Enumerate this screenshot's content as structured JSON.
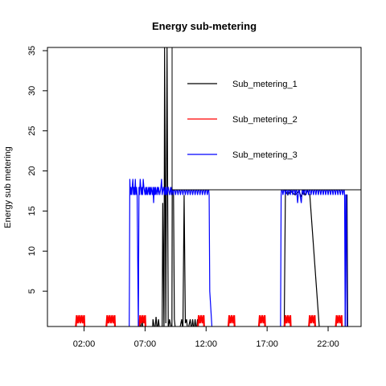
{
  "chart_data": {
    "type": "line",
    "title": "Energy sub-metering",
    "xlabel": "",
    "ylabel": "Energy sub metering",
    "xlim": [
      -1.0,
      24.7
    ],
    "ylim": [
      0.6,
      35.4
    ],
    "x_ticks": [
      {
        "value": 2,
        "label": "02:00"
      },
      {
        "value": 7,
        "label": "07:00"
      },
      {
        "value": 12,
        "label": "12:00"
      },
      {
        "value": 17,
        "label": "17:00"
      },
      {
        "value": 22,
        "label": "22:00"
      }
    ],
    "y_ticks": [
      5,
      10,
      15,
      20,
      25,
      30,
      35
    ],
    "legend": {
      "placement": "top-right",
      "entries": [
        {
          "name": "Sub_metering_1",
          "color": "#000000"
        },
        {
          "name": "Sub_metering_2",
          "color": "#ff0000"
        },
        {
          "name": "Sub_metering_3",
          "color": "#0000ff"
        }
      ]
    },
    "series": [
      {
        "name": "Sub_metering_1",
        "color": "#000000",
        "x": [
          -0.5,
          6.5,
          6.55,
          6.65,
          6.75,
          6.85,
          7.0,
          7.6,
          7.65,
          7.8,
          7.9,
          8.0,
          8.1,
          8.2,
          8.4,
          8.45,
          8.55,
          8.6,
          8.7,
          8.8,
          8.9,
          9.0,
          9.2,
          9.25,
          9.4,
          9.5,
          9.6,
          9.8,
          10.0,
          10.1,
          10.2,
          10.3,
          10.4,
          10.5,
          10.7,
          10.8,
          10.9,
          11.0,
          11.1,
          11.2,
          11.3,
          11.4,
          11.5,
          11.6,
          11.7,
          11.8,
          12.0,
          12.5,
          14.5,
          15.0,
          16.3,
          17.5,
          18.4,
          18.5,
          18.7,
          18.9,
          19.3,
          19.6,
          19.8,
          20.0,
          20.1,
          20.3,
          20.5,
          21.3,
          23.4,
          23.45,
          23.55,
          23.6,
          24.7
        ],
        "y": [
          0,
          0,
          1.5,
          0,
          1.5,
          0,
          0,
          0,
          1.5,
          0,
          1.8,
          0,
          1.5,
          0,
          0,
          16,
          0,
          35.4,
          1,
          35.4,
          0,
          1.5,
          0,
          35.4,
          1.5,
          0,
          0,
          0,
          1.5,
          0,
          17,
          1,
          1.5,
          0,
          1.5,
          0,
          1.5,
          0,
          1.5,
          0,
          1.5,
          0,
          0,
          0,
          0,
          0,
          0,
          0,
          0,
          0,
          0,
          0,
          0,
          17.5,
          17,
          17.5,
          17,
          17.5,
          16.8,
          17.5,
          17,
          17.5,
          17,
          0,
          0,
          17,
          17,
          0,
          0
        ]
      },
      {
        "name": "Sub_metering_2",
        "color": "#ff0000",
        "x": [
          1.3,
          1.35,
          1.4,
          1.5,
          1.6,
          1.7,
          1.8,
          1.9,
          2.0,
          2.05,
          3.8,
          3.85,
          3.9,
          4.0,
          4.1,
          4.2,
          4.3,
          4.4,
          4.5,
          4.55,
          6.5,
          6.55,
          6.6,
          6.7,
          6.8,
          6.9,
          7.0,
          7.05,
          11.3,
          11.35,
          11.4,
          11.5,
          11.6,
          11.7,
          11.8,
          11.85,
          13.8,
          13.85,
          13.9,
          14.0,
          14.1,
          14.2,
          14.3,
          14.35,
          16.3,
          16.35,
          16.4,
          16.5,
          16.6,
          16.7,
          16.8,
          16.85,
          18.4,
          18.45,
          18.5,
          18.6,
          18.7,
          18.8,
          18.9,
          18.95,
          20.4,
          20.45,
          20.5,
          20.6,
          20.7,
          20.8,
          20.9,
          20.95,
          22.6,
          22.65,
          22.7,
          22.8,
          22.9,
          23.0,
          23.1,
          23.15
        ],
        "y": [
          0,
          1,
          2,
          1,
          2,
          1,
          2,
          1,
          2,
          0,
          0,
          1,
          2,
          1,
          2,
          1,
          2,
          1,
          2,
          0,
          0,
          1,
          2,
          1,
          2,
          1,
          2,
          0,
          0,
          1,
          2,
          1,
          2,
          1,
          2,
          0,
          0,
          1,
          2,
          1,
          2,
          1,
          2,
          0,
          0,
          1,
          2,
          1,
          2,
          1,
          2,
          0,
          0,
          1,
          2,
          1,
          2,
          1,
          2,
          0,
          0,
          1,
          2,
          1,
          2,
          1,
          2,
          0,
          0,
          1,
          2,
          1,
          2,
          1,
          2,
          0
        ]
      },
      {
        "name": "Sub_metering_3",
        "color": "#0000ff",
        "x": [
          -0.5,
          5.7,
          5.72,
          5.75,
          5.8,
          5.85,
          5.9,
          5.95,
          6.0,
          6.05,
          6.1,
          6.15,
          6.2,
          6.25,
          6.3,
          6.35,
          6.45,
          6.5,
          6.55,
          6.6,
          6.7,
          6.75,
          6.8,
          6.85,
          6.9,
          7.0,
          7.05,
          7.1,
          7.15,
          7.2,
          7.3,
          7.35,
          7.4,
          7.45,
          7.5,
          7.6,
          7.65,
          7.7,
          7.75,
          7.8,
          7.85,
          7.9,
          8.0,
          8.05,
          8.1,
          8.2,
          8.3,
          8.35,
          8.4,
          8.5,
          8.6,
          8.65,
          8.7,
          8.75,
          8.8,
          8.9,
          9.0,
          9.1,
          9.15,
          9.2,
          9.3,
          9.4,
          9.5,
          9.6,
          9.7,
          9.8,
          9.9,
          10.0,
          10.1,
          10.2,
          10.3,
          10.4,
          10.5,
          10.6,
          10.7,
          10.8,
          10.9,
          11.0,
          11.1,
          11.2,
          11.3,
          11.4,
          11.5,
          11.6,
          11.7,
          11.8,
          11.9,
          12.0,
          12.1,
          12.2,
          12.25,
          12.3,
          12.5,
          18.1,
          18.15,
          18.2,
          18.3,
          18.4,
          18.5,
          18.6,
          18.7,
          18.8,
          18.9,
          19.0,
          19.1,
          19.2,
          19.3,
          19.4,
          19.5,
          19.6,
          19.7,
          19.8,
          19.9,
          20.0,
          20.1,
          20.2,
          20.3,
          20.4,
          20.5,
          20.6,
          20.7,
          20.8,
          20.9,
          21.0,
          21.1,
          21.2,
          21.3,
          21.4,
          21.5,
          21.6,
          21.7,
          21.8,
          21.9,
          22.0,
          22.1,
          22.2,
          22.3,
          22.4,
          22.5,
          22.6,
          22.7,
          22.8,
          22.9,
          23.0,
          23.1,
          23.2,
          23.3,
          23.35,
          23.4,
          23.45,
          23.5,
          23.55,
          24.7
        ],
        "y": [
          0,
          0,
          6.4,
          19,
          17,
          18,
          17,
          18,
          19,
          17,
          18,
          17,
          19,
          17,
          18,
          17,
          0,
          18,
          17,
          19,
          17,
          18,
          17,
          19,
          18,
          17,
          18,
          17,
          18,
          17,
          18,
          17,
          18,
          17,
          18,
          17,
          18,
          16,
          18,
          17,
          18,
          17,
          18,
          17,
          18,
          17,
          18,
          19,
          17,
          18,
          17,
          18,
          17,
          18,
          17,
          18,
          17,
          18,
          17,
          18,
          17,
          18,
          17,
          18,
          17,
          18,
          17,
          18,
          17,
          18,
          17,
          18,
          17,
          18,
          17,
          18,
          17,
          18,
          17,
          18,
          17,
          18,
          17,
          18,
          17,
          18,
          17,
          18,
          17,
          18,
          17,
          5,
          0,
          0,
          17,
          18,
          17,
          18,
          17,
          18,
          17,
          18,
          17,
          18,
          17,
          18,
          17,
          18,
          16,
          18,
          17,
          16,
          18,
          17,
          18,
          17,
          18,
          17,
          18,
          17,
          18,
          17,
          18,
          17,
          18,
          17,
          18,
          17,
          18,
          17,
          18,
          17,
          18,
          17,
          18,
          17,
          18,
          17,
          18,
          17,
          18,
          17,
          18,
          17,
          18,
          17,
          18,
          17,
          0,
          17,
          17,
          0,
          0
        ]
      }
    ]
  }
}
